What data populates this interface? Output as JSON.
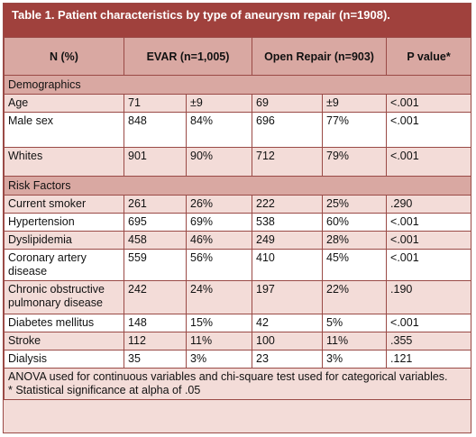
{
  "title": "Table 1. Patient characteristics by type of aneurysm repair (n=1908).",
  "headers": {
    "col1": "N (%)",
    "col2": "EVAR (n=1,005)",
    "col3": "Open Repair (n=903)",
    "col4": "P value*"
  },
  "sections": [
    {
      "name": "Demographics",
      "rows": [
        {
          "label": "Age",
          "evar_n": "71",
          "evar_pct": "±9",
          "open_n": "69",
          "open_pct": "±9",
          "p": "<.001"
        },
        {
          "label": "Male sex",
          "evar_n": "848",
          "evar_pct": "84%",
          "open_n": "696",
          "open_pct": "77%",
          "p": "<.001"
        },
        {
          "label": "Whites",
          "evar_n": "901",
          "evar_pct": "90%",
          "open_n": "712",
          "open_pct": "79%",
          "p": "<.001"
        }
      ]
    },
    {
      "name": "Risk Factors",
      "rows": [
        {
          "label": "Current smoker",
          "evar_n": "261",
          "evar_pct": "26%",
          "open_n": "222",
          "open_pct": "25%",
          "p": ".290"
        },
        {
          "label": "Hypertension",
          "evar_n": "695",
          "evar_pct": "69%",
          "open_n": "538",
          "open_pct": "60%",
          "p": "<.001"
        },
        {
          "label": "Dyslipidemia",
          "evar_n": "458",
          "evar_pct": "46%",
          "open_n": "249",
          "open_pct": "28%",
          "p": "<.001"
        },
        {
          "label": "Coronary artery disease",
          "evar_n": "559",
          "evar_pct": "56%",
          "open_n": "410",
          "open_pct": "45%",
          "p": "<.001"
        },
        {
          "label": "Chronic obstructive pulmonary disease",
          "evar_n": "242",
          "evar_pct": "24%",
          "open_n": "197",
          "open_pct": "22%",
          "p": ".190"
        },
        {
          "label": "Diabetes mellitus",
          "evar_n": "148",
          "evar_pct": "15%",
          "open_n": "42",
          "open_pct": "5%",
          "p": "<.001"
        },
        {
          "label": "Stroke",
          "evar_n": "112",
          "evar_pct": "11%",
          "open_n": "100",
          "open_pct": "11%",
          "p": ".355"
        },
        {
          "label": "Dialysis",
          "evar_n": "35",
          "evar_pct": "3%",
          "open_n": "23",
          "open_pct": "3%",
          "p": ".121"
        }
      ]
    }
  ],
  "footnotes": [
    "ANOVA used for continuous variables and chi-square test used for categorical variables.",
    "* Statistical significance at alpha of .05"
  ]
}
